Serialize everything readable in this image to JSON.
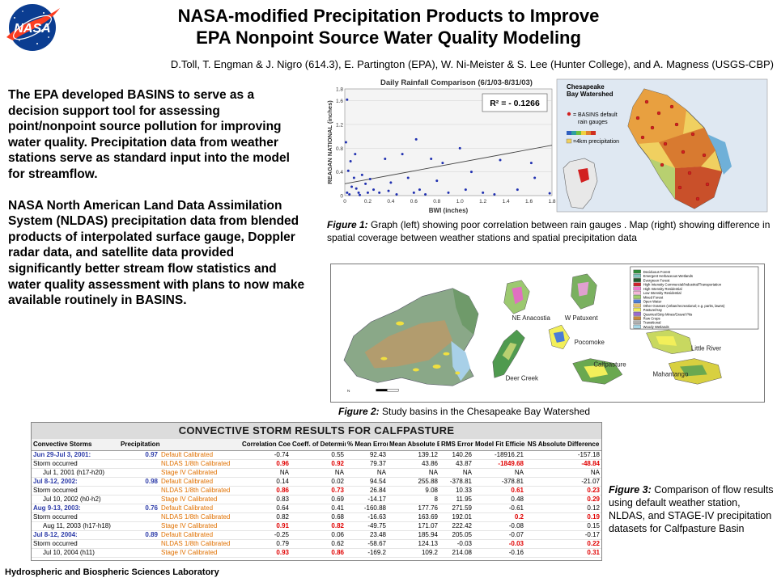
{
  "logo": {
    "text": "NASA",
    "icon": "nasa-meatball-logo",
    "colors": {
      "blue": "#0b3d91",
      "red": "#fc3d21"
    }
  },
  "title": {
    "line1": "NASA-modified Precipitation Products to Improve",
    "line2": "EPA Nonpoint Source Water Quality Modeling"
  },
  "authors": "D.Toll, T. Engman & J. Nigro (614.3), E. Partington (EPA), W. Ni-Meister & S. Lee (Hunter College), and A. Magness (USGS-CBP)",
  "left_text": {
    "para1": "The EPA developed BASINS to serve as a decision support tool for assessing point/nonpoint source pollution for improving water quality. Precipitation data from weather stations serve as standard input into the model for streamflow.",
    "para2": "NASA North American Land Data Assimilation System (NLDAS) precipitation data from blended products of interpolated surface gauge, Doppler radar data, and satellite data provided significantly better stream flow statistics and water quality assessment with plans to now make available routinely in BASINS."
  },
  "figure1": {
    "chart_title": "Daily Rainfall Comparison (6/1/03-8/31/03)",
    "xlabel": "BWI (inches)",
    "ylabel": "REAGAN NATIONAL (inches)",
    "r2_label": "R² = - 0.1266",
    "map_legend": {
      "title_line1": "Chesapeake",
      "title_line2": "Bay Watershed",
      "gauges": "= BASINS default",
      "gauges2": "rain gauges",
      "precip": "=4km precipitation"
    },
    "caption_label": "Figure 1:",
    "caption_text": " Graph (left) showing poor correlation between rain gauges . Map (right) showing difference in spatial coverage between weather stations and spatial precipitation data"
  },
  "chart_data": {
    "type": "scatter",
    "title": "Daily Rainfall Comparison (6/1/03-8/31/03)",
    "xlabel": "BWI (inches)",
    "ylabel": "REAGAN NATIONAL (inches)",
    "xlim": [
      0,
      1.8
    ],
    "ylim": [
      0,
      1.8
    ],
    "xticks": [
      "0",
      "0.2",
      "0.4",
      "0.6",
      "0.8",
      "1.0",
      "1.2",
      "1.4",
      "1.6",
      "1.8"
    ],
    "yticks": [
      "0",
      "0.2",
      "0.4",
      "0.6",
      "0.8",
      "1.0",
      "1.2",
      "1.4",
      "1.6",
      "1.8"
    ],
    "annotation": "R² = - 0.1266",
    "trendline": [
      [
        0,
        0.2
      ],
      [
        1.8,
        0.85
      ]
    ],
    "points": [
      [
        0.02,
        1.62
      ],
      [
        0.05,
        0.58
      ],
      [
        0.08,
        0.3
      ],
      [
        0.1,
        0.12
      ],
      [
        0.02,
        0.05
      ],
      [
        0.04,
        0.02
      ],
      [
        0.12,
        0.05
      ],
      [
        0.15,
        0.35
      ],
      [
        0.18,
        0.2
      ],
      [
        0.2,
        0.05
      ],
      [
        0.22,
        0.28
      ],
      [
        0.25,
        0.1
      ],
      [
        0.3,
        0.05
      ],
      [
        0.35,
        0.62
      ],
      [
        0.38,
        0.08
      ],
      [
        0.4,
        0.22
      ],
      [
        0.45,
        0.02
      ],
      [
        0.5,
        0.7
      ],
      [
        0.55,
        0.3
      ],
      [
        0.6,
        0.05
      ],
      [
        0.62,
        0.95
      ],
      [
        0.65,
        0.1
      ],
      [
        0.7,
        0.02
      ],
      [
        0.75,
        0.62
      ],
      [
        0.8,
        0.25
      ],
      [
        0.85,
        0.55
      ],
      [
        0.9,
        0.05
      ],
      [
        1.0,
        0.8
      ],
      [
        1.05,
        0.1
      ],
      [
        1.1,
        0.4
      ],
      [
        1.2,
        0.05
      ],
      [
        1.3,
        0.02
      ],
      [
        1.35,
        0.6
      ],
      [
        1.5,
        0.1
      ],
      [
        1.62,
        0.55
      ],
      [
        1.65,
        0.3
      ],
      [
        1.78,
        0.04
      ],
      [
        0.01,
        0.9
      ],
      [
        0.03,
        0.42
      ],
      [
        0.06,
        0.15
      ],
      [
        0.09,
        0.7
      ],
      [
        0.13,
        0.01
      ]
    ]
  },
  "figure2": {
    "labels": {
      "ne_anacostia": "NE Anacostia",
      "w_patuxent": "W Patuxent",
      "pocomoke": "Pocomoke",
      "little_river": "Little River",
      "calfpasture": "Calfpasture",
      "mahantango": "Mahantango",
      "deer_creek": "Deer Creek"
    },
    "legend": [
      {
        "label": "Deciduous Forest",
        "color": "#2e8b3a"
      },
      {
        "label": "Emergent Herbaceous Wetlands",
        "color": "#7fc7c0"
      },
      {
        "label": "Evergreen Forest",
        "color": "#1e5a2a"
      },
      {
        "label": "High Intensity Commercial/Industrial/Transportation",
        "color": "#d0202a"
      },
      {
        "label": "High Intensity Residential",
        "color": "#f07ad0"
      },
      {
        "label": "Low Intensity Residential",
        "color": "#f6b6d8"
      },
      {
        "label": "Mixed Forest",
        "color": "#9fcf6a"
      },
      {
        "label": "Open Water",
        "color": "#4a7cd8"
      },
      {
        "label": "Other Grasses (Urban/recreational; e.g. parks, lawns)",
        "color": "#e6c070"
      },
      {
        "label": "Pasture/Hay",
        "color": "#f2ef5a"
      },
      {
        "label": "Quarries/Strip Mines/Gravel Pits",
        "color": "#9a6ad0"
      },
      {
        "label": "Row Crops",
        "color": "#c88a3a"
      },
      {
        "label": "Transitional",
        "color": "#b0b0b0"
      },
      {
        "label": "Woody Wetlands",
        "color": "#a8d8e8"
      }
    ],
    "caption_label": "Figure 2:",
    "caption_text": " Study basins in the Chesapeake Bay Watershed"
  },
  "table": {
    "title": "CONVECTIVE STORM RESULTS FOR CALFPASTURE",
    "headers": [
      "Convective Storms",
      "Precipitation",
      "",
      "Correlation Coeff.",
      "Coeff. of Determination",
      "% Mean Error",
      "Mean Absolute Error",
      "RMS Error",
      "Model Fit Efficiency",
      "NS Absolute Difference"
    ],
    "rows": [
      {
        "event": "Jun 29-Jul 3, 2001:",
        "precip": "0.97",
        "run": "Default Calibrated",
        "cc": "-0.74",
        "cd": "0.55",
        "pme": "92.43",
        "mae": "139.12",
        "rms": "140.26",
        "mfe": "-18916.21",
        "ns": "-157.18",
        "first": true,
        "red": []
      },
      {
        "event": "Storm occurred",
        "precip": "",
        "run": "NLDAS 1/8th Calibrated",
        "cc": "0.96",
        "cd": "0.92",
        "pme": "79.37",
        "mae": "43.86",
        "rms": "43.87",
        "mfe": "-1849.68",
        "ns": "-48.84",
        "red": [
          "cc",
          "cd",
          "mfe",
          "ns"
        ]
      },
      {
        "event": "Jul 1, 2001 (h17-h20)",
        "precip": "",
        "run": "Stage IV Calibrated",
        "cc": "NA",
        "cd": "NA",
        "pme": "NA",
        "mae": "NA",
        "rms": "NA",
        "mfe": "NA",
        "ns": "NA",
        "sub": true,
        "red": []
      },
      {
        "event": "Jul 8-12, 2002:",
        "precip": "0.98",
        "run": "Default Calibrated",
        "cc": "0.14",
        "cd": "0.02",
        "pme": "94.54",
        "mae": "255.88",
        "rms": "-378.81",
        "mfe": "-378.81",
        "ns": "-21.07",
        "first": true,
        "red": []
      },
      {
        "event": "Storm occurred",
        "precip": "",
        "run": "NLDAS 1/8th Calibrated",
        "cc": "0.86",
        "cd": "0.73",
        "pme": "26.84",
        "mae": "9.08",
        "rms": "10.33",
        "mfe": "0.61",
        "ns": "0.23",
        "red": [
          "cc",
          "cd",
          "mfe",
          "ns"
        ]
      },
      {
        "event": "Jul 10, 2002 (h0-h2)",
        "precip": "",
        "run": "Stage IV Calibrated",
        "cc": "0.83",
        "cd": "0.69",
        "pme": "-14.17",
        "mae": "8",
        "rms": "11.95",
        "mfe": "0.48",
        "ns": "0.29",
        "sub": true,
        "red": [
          "ns"
        ]
      },
      {
        "event": "Aug 9-13, 2003:",
        "precip": "0.76",
        "run": "Default Calibrated",
        "cc": "0.64",
        "cd": "0.41",
        "pme": "-160.88",
        "mae": "177.76",
        "rms": "271.59",
        "mfe": "-0.61",
        "ns": "0.12",
        "first": true,
        "red": []
      },
      {
        "event": "Storm occurred",
        "precip": "",
        "run": "NLDAS 1/8th Calibrated",
        "cc": "0.82",
        "cd": "0.68",
        "pme": "-16.63",
        "mae": "163.69",
        "rms": "192.01",
        "mfe": "0.2",
        "ns": "0.19",
        "red": [
          "mfe",
          "ns"
        ]
      },
      {
        "event": "Aug 11, 2003 (h17-h18)",
        "precip": "",
        "run": "Stage IV Calibrated",
        "cc": "0.91",
        "cd": "0.82",
        "pme": "-49.75",
        "mae": "171.07",
        "rms": "222.42",
        "mfe": "-0.08",
        "ns": "0.15",
        "sub": true,
        "red": [
          "cc",
          "cd"
        ]
      },
      {
        "event": "Jul 8-12, 2004:",
        "precip": "0.89",
        "run": "Default Calibrated",
        "cc": "-0.25",
        "cd": "0.06",
        "pme": "23.48",
        "mae": "185.94",
        "rms": "205.05",
        "mfe": "-0.07",
        "ns": "-0.17",
        "first": true,
        "red": []
      },
      {
        "event": "Storm occurred",
        "precip": "",
        "run": "NLDAS 1/8th Calibrated",
        "cc": "0.79",
        "cd": "0.62",
        "pme": "-58.67",
        "mae": "124.13",
        "rms": "-0.03",
        "mfe": "-0.03",
        "ns": "0.22",
        "red": [
          "mfe",
          "ns"
        ]
      },
      {
        "event": "Jul 10, 2004 (h11)",
        "precip": "",
        "run": "Stage IV Calibrated",
        "cc": "0.93",
        "cd": "0.86",
        "pme": "-169.2",
        "mae": "109.2",
        "rms": "214.08",
        "mfe": "-0.16",
        "ns": "0.31",
        "sub": true,
        "red": [
          "cc",
          "cd",
          "ns"
        ]
      }
    ]
  },
  "figure3": {
    "caption_label": "Figure 3:",
    "caption_text": " Comparison of flow results using default weather station, NLDAS, and STAGE-IV precipitation datasets for Calfpasture Basin"
  },
  "footer": "Hydrospheric and Biospheric Sciences Laboratory"
}
